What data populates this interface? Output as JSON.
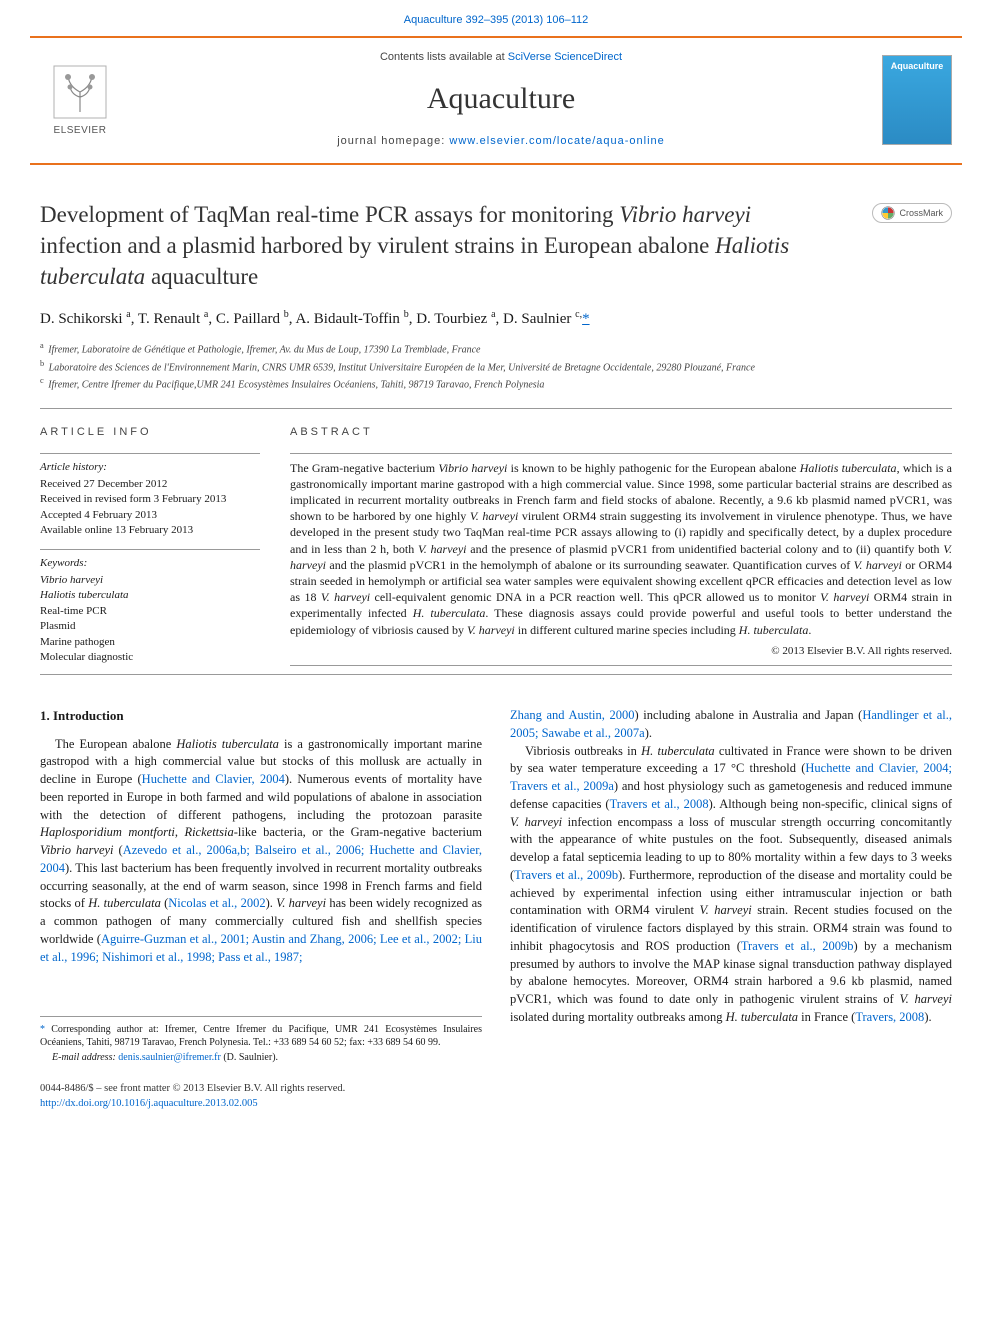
{
  "topbar": {
    "citation": "Aquaculture 392–395 (2013) 106–112",
    "href_label": "Aquaculture 392–395 (2013) 106–112"
  },
  "header": {
    "contents_prefix": "Contents lists available at ",
    "contents_link": "SciVerse ScienceDirect",
    "journal_name": "Aquaculture",
    "homepage_prefix": "journal homepage: ",
    "homepage_url": "www.elsevier.com/locate/aqua-online",
    "elsevier": "ELSEVIER",
    "journal_logo_text": "Aquaculture"
  },
  "crossmark": {
    "label": "CrossMark"
  },
  "title": {
    "html": "Development of TaqMan real-time PCR assays for monitoring <em>Vibrio harveyi</em> infection and a plasmid harbored by virulent strains in European abalone <em>Haliotis tuberculata</em> aquaculture"
  },
  "authors": {
    "list_html": "D. Schikorski <sup>a</sup>, T. Renault <sup>a</sup>, C. Paillard <sup>b</sup>, A. Bidault-Toffin <sup>b</sup>, D. Tourbiez <sup>a</sup>, D. Saulnier <sup>c,</sup><a class=\"corr-star\" href=\"#\">*</a>"
  },
  "affiliations": {
    "a": "Ifremer, Laboratoire de Génétique et Pathologie, Ifremer, Av. du Mus de Loup, 17390 La Tremblade, France",
    "b": "Laboratoire des Sciences de l'Environnement Marin, CNRS UMR 6539, Institut Universitaire Européen de la Mer, Université de Bretagne Occidentale, 29280 Plouzané, France",
    "c": "Ifremer, Centre Ifremer du Pacifique,UMR 241 Ecosystèmes Insulaires Océaniens, Tahiti, 98719 Taravao, French Polynesia"
  },
  "article_info": {
    "head": "ARTICLE INFO",
    "history_head": "Article history:",
    "received": "Received 27 December 2012",
    "revised": "Received in revised form 3 February 2013",
    "accepted": "Accepted 4 February 2013",
    "online": "Available online 13 February 2013",
    "keywords_head": "Keywords:",
    "keywords": [
      "Vibrio harveyi",
      "Haliotis tuberculata",
      "Real-time PCR",
      "Plasmid",
      "Marine pathogen",
      "Molecular diagnostic"
    ]
  },
  "abstract": {
    "head": "ABSTRACT",
    "text_html": "The Gram-negative bacterium <em>Vibrio harveyi</em> is known to be highly pathogenic for the European abalone <em>Haliotis tuberculata</em>, which is a gastronomically important marine gastropod with a high commercial value. Since 1998, some particular bacterial strains are described as implicated in recurrent mortality outbreaks in French farm and field stocks of abalone. Recently, a 9.6 kb plasmid named pVCR1, was shown to be harbored by one highly <em>V. harveyi</em> virulent ORM4 strain suggesting its involvement in virulence phenotype. Thus, we have developed in the present study two TaqMan real-time PCR assays allowing to (i) rapidly and specifically detect, by a duplex procedure and in less than 2 h, both <em>V. harveyi</em> and the presence of plasmid pVCR1 from unidentified bacterial colony and to (ii) quantify both <em>V. harveyi</em> and the plasmid pVCR1 in the hemolymph of abalone or its surrounding seawater. Quantification curves of <em>V. harveyi</em> or ORM4 strain seeded in hemolymph or artificial sea water samples were equivalent showing excellent qPCR efficacies and detection level as low as 18 <em>V. harveyi</em> cell-equivalent genomic DNA in a PCR reaction well. This qPCR allowed us to monitor <em>V. harveyi</em> ORM4 strain in experimentally infected <em>H. tuberculata</em>. These diagnosis assays could provide powerful and useful tools to better understand the epidemiology of vibriosis caused by <em>V. harveyi</em> in different cultured marine species including <em>H. tuberculata</em>.",
    "copyright": "© 2013 Elsevier B.V. All rights reserved."
  },
  "intro": {
    "head": "1. Introduction",
    "p1_html": "The European abalone <em>Haliotis tuberculata</em> is a gastronomically important marine gastropod with a high commercial value but stocks of this mollusk are actually in decline in Europe (<a href=\"#\">Huchette and Clavier, 2004</a>). Numerous events of mortality have been reported in Europe in both farmed and wild populations of abalone in association with the detection of different pathogens, including the protozoan parasite <em>Haplosporidium montforti</em>, <em>Rickettsia</em>-like bacteria, or the Gram-negative bacterium <em>Vibrio harveyi</em> (<a href=\"#\">Azevedo et al., 2006a,b; Balseiro et al., 2006; Huchette and Clavier, 2004</a>). This last bacterium has been frequently involved in recurrent mortality outbreaks occurring seasonally, at the end of warm season, since 1998 in French farms and field stocks of <em>H. tuberculata</em> (<a href=\"#\">Nicolas et al., 2002</a>). <em>V. harveyi</em> has been widely recognized as a common pathogen of many commercially cultured fish and shellfish species worldwide (<a href=\"#\">Aguirre-Guzman et al., 2001; Austin and Zhang, 2006; Lee et al., 2002; Liu et al., 1996; Nishimori et al., 1998; Pass et al., 1987;</a>",
    "p1b_html": "<a href=\"#\">Zhang and Austin, 2000</a>) including abalone in Australia and Japan (<a href=\"#\">Handlinger et al., 2005; Sawabe et al., 2007a</a>).",
    "p2_html": "Vibriosis outbreaks in <em>H. tuberculata</em> cultivated in France were shown to be driven by sea water temperature exceeding a 17 °C threshold (<a href=\"#\">Huchette and Clavier, 2004; Travers et al., 2009a</a>) and host physiology such as gametogenesis and reduced immune defense capacities (<a href=\"#\">Travers et al., 2008</a>). Although being non-specific, clinical signs of <em>V. harveyi</em> infection encompass a loss of muscular strength occurring concomitantly with the appearance of white pustules on the foot. Subsequently, diseased animals develop a fatal septicemia leading to up to 80% mortality within a few days to 3 weeks (<a href=\"#\">Travers et al., 2009b</a>). Furthermore, reproduction of the disease and mortality could be achieved by experimental infection using either intramuscular injection or bath contamination with ORM4 virulent <em>V. harveyi</em> strain. Recent studies focused on the identification of virulence factors displayed by this strain. ORM4 strain was found to inhibit phagocytosis and ROS production (<a href=\"#\">Travers et al., 2009b</a>) by a mechanism presumed by authors to involve the MAP kinase signal transduction pathway displayed by abalone hemocytes. Moreover, ORM4 strain harbored a 9.6 kb plasmid, named pVCR1, which was found to date only in pathogenic virulent strains of <em>V. harveyi</em> isolated during mortality outbreaks among <em>H. tuberculata</em> in France (<a href=\"#\">Travers, 2008</a>)."
  },
  "corr_note": {
    "star": "*",
    "text": " Corresponding author at: Ifremer, Centre Ifremer du Pacifique, UMR 241 Ecosystèmes Insulaires Océaniens, Tahiti, 98719 Taravao, French Polynesia. Tel.: +33 689 54 60 52; fax: +33 689 54 60 99.",
    "email_label": "E-mail address: ",
    "email": "denis.saulnier@ifremer.fr",
    "email_suffix": " (D. Saulnier)."
  },
  "footer": {
    "line1": "0044-8486/$ – see front matter © 2013 Elsevier B.V. All rights reserved.",
    "doi": "http://dx.doi.org/10.1016/j.aquaculture.2013.02.005"
  },
  "colors": {
    "link": "#0066cc",
    "rule_orange": "#e9711c",
    "grey_text": "#444444"
  }
}
